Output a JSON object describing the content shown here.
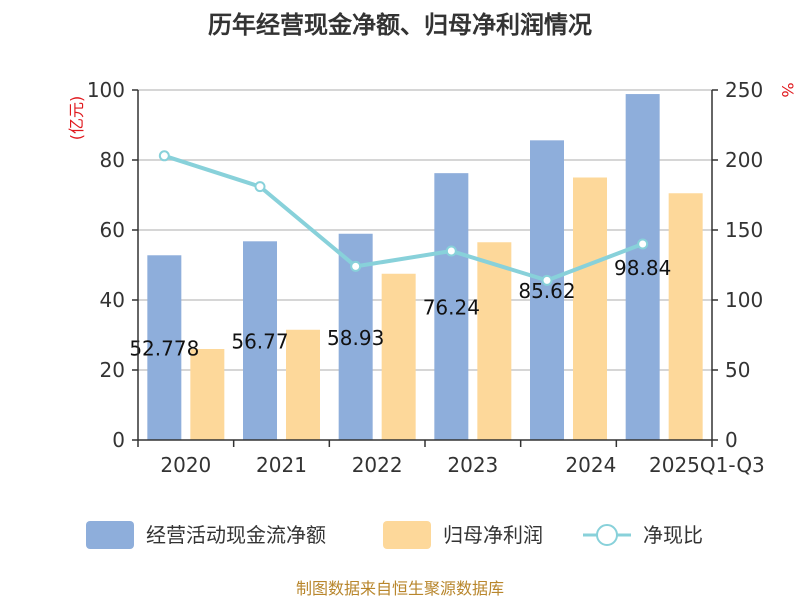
{
  "chart_data": {
    "type": "bar+line",
    "title": "历年经营现金净额、归母净利润情况",
    "categories": [
      "2020",
      "2021",
      "2022",
      "2023",
      "2024",
      "2025Q1-Q3"
    ],
    "y_left": {
      "unit": "(亿元)",
      "ylim": [
        0,
        100
      ],
      "ticks": [
        0,
        20,
        40,
        60,
        80,
        100
      ]
    },
    "y_right": {
      "unit": "%",
      "ylim": [
        0,
        250
      ],
      "ticks": [
        0,
        50,
        100,
        150,
        200,
        250
      ]
    },
    "series": [
      {
        "name": "经营活动现金流净额",
        "type": "bar",
        "axis": "left",
        "color": "#8eaedb",
        "values": [
          52.778,
          56.77,
          58.93,
          76.24,
          85.62,
          98.84
        ],
        "labels": [
          "52.778",
          "56.77",
          "58.93",
          "76.24",
          "85.62",
          "98.84"
        ]
      },
      {
        "name": "归母净利润",
        "type": "bar",
        "axis": "left",
        "color": "#fdd89a",
        "values": [
          26.0,
          31.5,
          47.5,
          56.5,
          75.0,
          70.5
        ]
      },
      {
        "name": "净现比",
        "type": "line",
        "axis": "right",
        "color": "#88d1da",
        "values": [
          203,
          181,
          124,
          135,
          114,
          140
        ]
      }
    ],
    "grid": true,
    "legend_position": "bottom"
  },
  "source": "制图数据来自恒生聚源数据库"
}
